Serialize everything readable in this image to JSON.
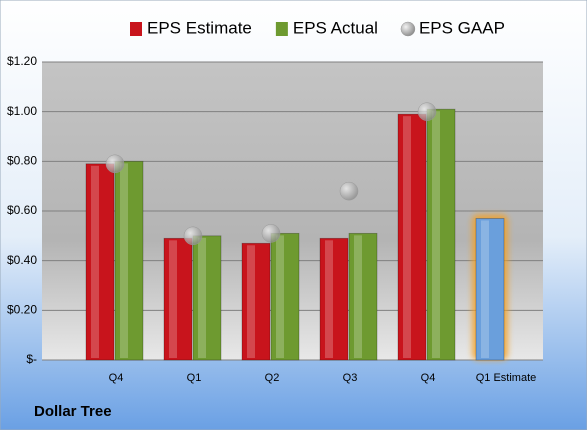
{
  "chart_data": {
    "type": "bar",
    "title": "Dollar Tree",
    "categories": [
      "Q4",
      "Q1",
      "Q2",
      "Q3",
      "Q4",
      "Q1 Estimate"
    ],
    "series": [
      {
        "name": "EPS Estimate",
        "color": "#c8141c",
        "point_colors": [
          "#c8141c",
          "#c8141c",
          "#c8141c",
          "#c8141c",
          "#c8141c",
          "#6a9fdc"
        ],
        "values": [
          0.79,
          0.49,
          0.47,
          0.49,
          0.99,
          0.57
        ]
      },
      {
        "name": "EPS Actual",
        "color": "#6e9a30",
        "values": [
          0.8,
          0.5,
          0.51,
          0.51,
          1.01,
          null
        ]
      },
      {
        "name": "EPS GAAP",
        "color": "#a8a8a8",
        "marker": "circle",
        "values": [
          0.79,
          0.5,
          0.51,
          0.68,
          1.0,
          null
        ]
      }
    ],
    "ylim": [
      0,
      1.2
    ],
    "yticks": [
      {
        "value": 0,
        "label": "$-"
      },
      {
        "value": 0.2,
        "label": "$0.20"
      },
      {
        "value": 0.4,
        "label": "$0.40"
      },
      {
        "value": 0.6,
        "label": "$0.60"
      },
      {
        "value": 0.8,
        "label": "$0.80"
      },
      {
        "value": 1.0,
        "label": "$1.00"
      },
      {
        "value": 1.2,
        "label": "$1.20"
      }
    ],
    "grid": true,
    "legend": "top"
  }
}
